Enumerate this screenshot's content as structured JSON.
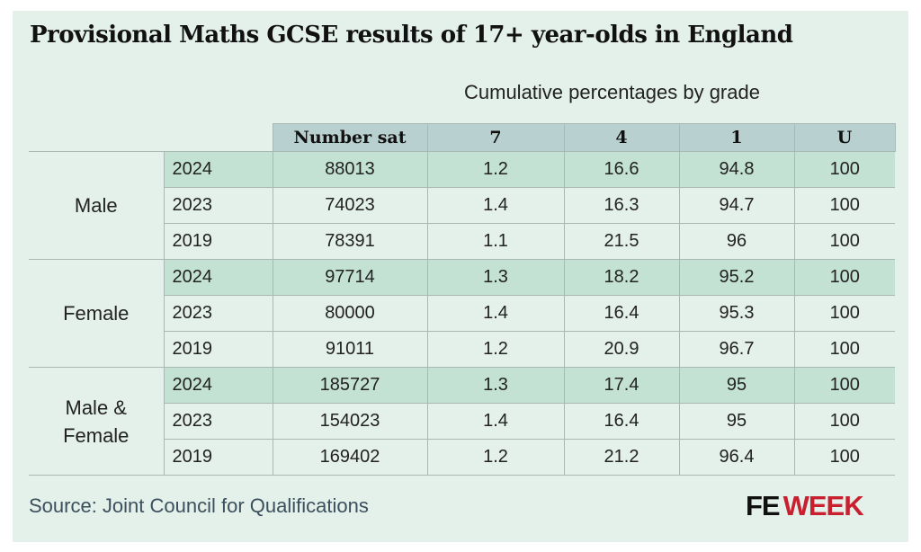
{
  "title": "Provisional Maths GCSE results of 17+ year-olds in England",
  "subtitle": "Cumulative percentages by grade",
  "source": "Source: Joint Council for Qualifications",
  "logo": {
    "part1": "FE",
    "part2": "WEEK"
  },
  "colors": {
    "background": "#e4f0ea",
    "header": "#b8d0cf",
    "highlight_row": "#c3e2d4",
    "logo_red": "#c8202f"
  },
  "chart_data": {
    "type": "table",
    "columns": [
      "Number sat",
      "7",
      "4",
      "1",
      "U"
    ],
    "groups": [
      {
        "label": "Male",
        "rows": [
          {
            "year": "2024",
            "values": [
              "88013",
              "1.2",
              "16.6",
              "94.8",
              "100"
            ]
          },
          {
            "year": "2023",
            "values": [
              "74023",
              "1.4",
              "16.3",
              "94.7",
              "100"
            ]
          },
          {
            "year": "2019",
            "values": [
              "78391",
              "1.1",
              "21.5",
              "96",
              "100"
            ]
          }
        ]
      },
      {
        "label": "Female",
        "rows": [
          {
            "year": "2024",
            "values": [
              "97714",
              "1.3",
              "18.2",
              "95.2",
              "100"
            ]
          },
          {
            "year": "2023",
            "values": [
              "80000",
              "1.4",
              "16.4",
              "95.3",
              "100"
            ]
          },
          {
            "year": "2019",
            "values": [
              "91011",
              "1.2",
              "20.9",
              "96.7",
              "100"
            ]
          }
        ]
      },
      {
        "label": "Male & Female",
        "rows": [
          {
            "year": "2024",
            "values": [
              "185727",
              "1.3",
              "17.4",
              "95",
              "100"
            ]
          },
          {
            "year": "2023",
            "values": [
              "154023",
              "1.4",
              "16.4",
              "95",
              "100"
            ]
          },
          {
            "year": "2019",
            "values": [
              "169402",
              "1.2",
              "21.2",
              "96.4",
              "100"
            ]
          }
        ]
      }
    ]
  }
}
